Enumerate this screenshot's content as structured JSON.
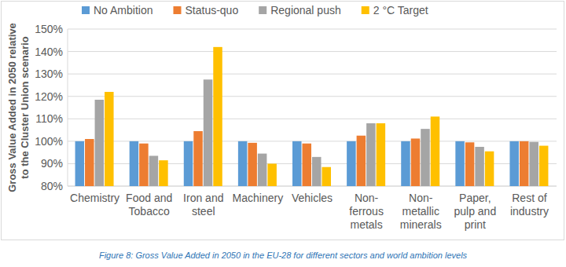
{
  "chart_data": {
    "type": "bar",
    "title": "Figure 8: Gross Value Added in 2050 in the EU-28 for different sectors and world ambition levels",
    "y_label": "Gross Value Added in 2050 relative to the Cluster Union scenario",
    "categories": [
      "Chemistry",
      "Food and Tobacco",
      "Iron and steel",
      "Machinery",
      "Vehicles",
      "Non-ferrous metals",
      "Non-metallic minerals",
      "Paper, pulp and print",
      "Rest of industry"
    ],
    "series": [
      {
        "name": "No Ambition",
        "color": "#5b9bd5",
        "values": [
          100,
          100,
          100,
          100,
          100,
          100,
          100,
          100,
          100
        ]
      },
      {
        "name": "Status-quo",
        "color": "#ed7d31",
        "values": [
          101,
          99,
          104.5,
          99.3,
          99,
          102.5,
          101.2,
          99.5,
          100
        ]
      },
      {
        "name": "Regional push",
        "color": "#a5a5a5",
        "values": [
          118.5,
          93.5,
          127.5,
          94.5,
          93,
          108,
          105.5,
          97.5,
          99.7
        ]
      },
      {
        "name": "2 °C Target",
        "color": "#ffc000",
        "values": [
          122,
          91.5,
          142,
          90,
          88.5,
          108,
          111,
          95.5,
          98
        ]
      }
    ],
    "ylim": [
      80,
      150
    ],
    "yticks": [
      {
        "value": 80,
        "label": "80%"
      },
      {
        "value": 90,
        "label": "90%"
      },
      {
        "value": 100,
        "label": "100%"
      },
      {
        "value": 110,
        "label": "110%"
      },
      {
        "value": 120,
        "label": "120%"
      },
      {
        "value": 130,
        "label": "130%"
      },
      {
        "value": 140,
        "label": "140%"
      },
      {
        "value": 150,
        "label": "150%"
      }
    ],
    "grid": true,
    "legend": "top"
  }
}
